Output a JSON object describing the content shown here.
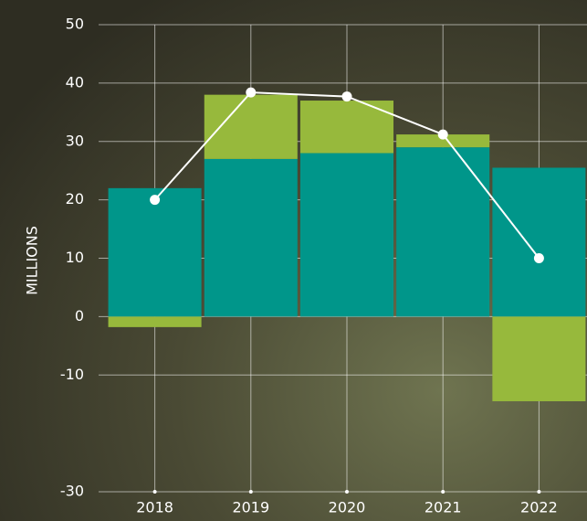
{
  "chart_data": {
    "type": "bar",
    "stacked": true,
    "y_label": "MILLIONS",
    "categories": [
      "2018",
      "2019",
      "2020",
      "2021",
      "2022"
    ],
    "series": [
      {
        "color": "#00968a",
        "values": [
          22,
          27,
          28,
          29,
          25.5
        ]
      },
      {
        "color": "#97b93c",
        "values": [
          -1.8,
          11,
          9,
          2.2,
          -14.5
        ]
      },
      {
        "type": "line",
        "color": "#ffffff",
        "values": [
          20,
          38.4,
          37.7,
          31.2,
          10
        ]
      }
    ],
    "ylim": [
      -30,
      50
    ],
    "yticks": [
      -30,
      -10,
      0,
      10,
      20,
      30,
      40,
      50
    ],
    "grid": true
  }
}
